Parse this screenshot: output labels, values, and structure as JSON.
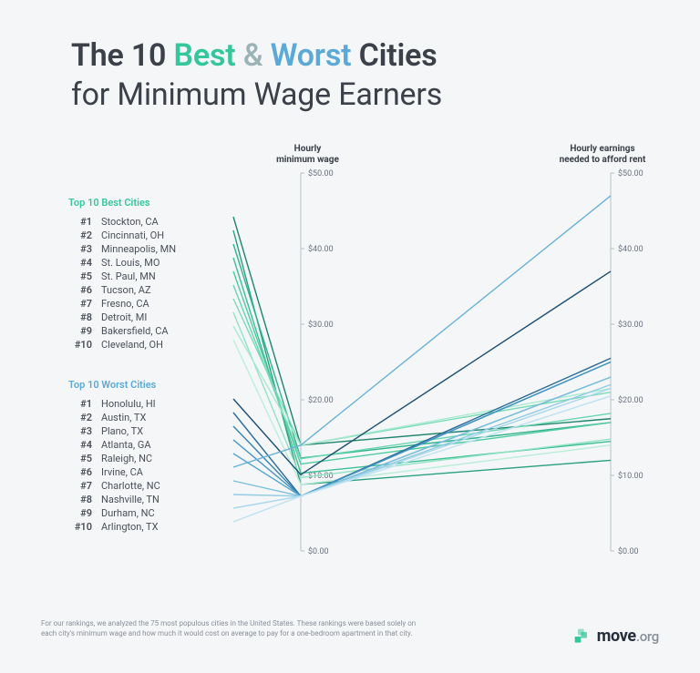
{
  "title": {
    "prefix": "The 10 ",
    "best": "Best",
    "amp": " & ",
    "worst": "Worst",
    "suffix": " Cities",
    "line2": "for Minimum Wage Earners"
  },
  "layout": {
    "listLeftX": 256,
    "wageAxisX": 330,
    "rentAxisX": 670,
    "yTop": 190,
    "yBottom": 605,
    "yMin": 0,
    "yMax": 50
  },
  "axis": {
    "wageLabel1": "Hourly",
    "wageLabel2": "minimum wage",
    "rentLabel1": "Hourly earnings",
    "rentLabel2": "needed to afford rent",
    "ticks": [
      "$0.00",
      "$10.00",
      "$20.00",
      "$30.00",
      "$40.00",
      "$50.00"
    ],
    "tickValues": [
      0,
      10,
      20,
      30,
      40,
      50
    ],
    "gridColor": "#b5c1c7"
  },
  "groups": [
    {
      "key": "best",
      "header": "Top 10 Best Cities",
      "listTop": 215,
      "items": [
        {
          "rank": "#1",
          "city": "Stockton, CA",
          "wage": 14.0,
          "rent": 17.5,
          "color": "#1f846c"
        },
        {
          "rank": "#2",
          "city": "Cincinnati, OH",
          "wage": 8.8,
          "rent": 12.0,
          "color": "#2aa07f"
        },
        {
          "rank": "#3",
          "city": "Minneapolis, MN",
          "wage": 12.3,
          "rent": 17.0,
          "color": "#32b38a"
        },
        {
          "rank": "#4",
          "city": "St. Louis, MO",
          "wage": 10.3,
          "rent": 14.5,
          "color": "#3cc094"
        },
        {
          "rank": "#5",
          "city": "St. Paul, MN",
          "wage": 11.5,
          "rent": 17.0,
          "color": "#4fcca0"
        },
        {
          "rank": "#6",
          "city": "Tucson, AZ",
          "wage": 12.2,
          "rent": 18.2,
          "color": "#66d6ad"
        },
        {
          "rank": "#7",
          "city": "Fresno, CA",
          "wage": 14.0,
          "rent": 21.0,
          "color": "#7adcb7"
        },
        {
          "rank": "#8",
          "city": "Detroit, MI",
          "wage": 9.7,
          "rent": 14.8,
          "color": "#92e3c4"
        },
        {
          "rank": "#9",
          "city": "Bakersfield, CA",
          "wage": 14.0,
          "rent": 21.5,
          "color": "#a8ead0"
        },
        {
          "rank": "#10",
          "city": "Cleveland, OH",
          "wage": 8.8,
          "rent": 14.0,
          "color": "#bdeeda"
        }
      ]
    },
    {
      "key": "worst",
      "header": "Top 10 Worst Cities",
      "listTop": 415,
      "items": [
        {
          "rank": "#1",
          "city": "Honolulu, HI",
          "wage": 10.1,
          "rent": 37.0,
          "color": "#1d4e72"
        },
        {
          "rank": "#2",
          "city": "Austin, TX",
          "wage": 7.25,
          "rent": 25.5,
          "color": "#2a6b96"
        },
        {
          "rank": "#3",
          "city": "Plano, TX",
          "wage": 7.25,
          "rent": 25.0,
          "color": "#3582b1"
        },
        {
          "rank": "#4",
          "city": "Atlanta, GA",
          "wage": 7.25,
          "rent": 25.0,
          "color": "#4495c3"
        },
        {
          "rank": "#5",
          "city": "Raleigh, NC",
          "wage": 7.25,
          "rent": 23.0,
          "color": "#55a4cd"
        },
        {
          "rank": "#6",
          "city": "Irvine, CA",
          "wage": 14.0,
          "rent": 47.0,
          "color": "#68b2d6"
        },
        {
          "rank": "#7",
          "city": "Charlotte, NC",
          "wage": 7.25,
          "rent": 23.0,
          "color": "#7cbfdd"
        },
        {
          "rank": "#8",
          "city": "Nashville, TN",
          "wage": 7.25,
          "rent": 22.0,
          "color": "#92cbe4"
        },
        {
          "rank": "#9",
          "city": "Durham, NC",
          "wage": 7.25,
          "rent": 21.5,
          "color": "#a9d7eb"
        },
        {
          "rank": "#10",
          "city": "Arlington, TX",
          "wage": 7.25,
          "rent": 20.5,
          "color": "#bfe2f0"
        }
      ]
    }
  ],
  "footnote": "For our rankings, we analyzed the 75 most populous cities in the United States. These rankings were based solely on each city's minimum wage and how much it would cost on average to pay for a one-bedroom apartment in that city.",
  "logo": {
    "brand": "move",
    "suffix": ".org",
    "markColor": "#34c79b"
  }
}
